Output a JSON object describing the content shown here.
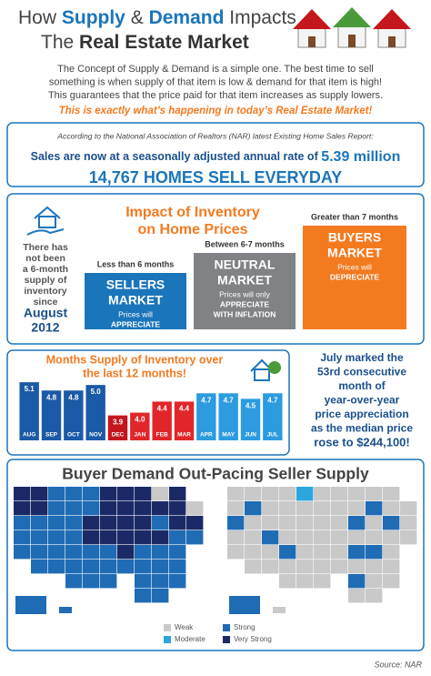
{
  "header": {
    "title_line1": [
      "How ",
      "Supply",
      " & ",
      "Demand",
      " Impacts"
    ],
    "title_line2": [
      "The ",
      "Real Estate Market"
    ],
    "intro": [
      "The Concept of Supply & Demand is a simple one. The best time to sell",
      "something is when supply of that item is low & demand for that item is high!",
      "This guarantees that the price paid for that item increases as supply lowers."
    ],
    "highlight": "This is exactly what’s happening in today’s Real Estate Market!"
  },
  "nar": {
    "source_line": "According to the National Association of Realtors (NAR) latest Existing Home Sales Report:",
    "sales_text": "Sales are now at a seasonally adjusted annual rate of ",
    "sales_value": "5.39 million",
    "homes": "14,767 HOMES SELL EVERYDAY"
  },
  "inventory": {
    "title": [
      "Impact of Inventory",
      "on Home Prices"
    ],
    "note": [
      "There has",
      "not been",
      "a 6-month",
      "supply of",
      "inventory",
      "since"
    ],
    "note_date": [
      "August",
      "2012"
    ],
    "markets": [
      {
        "range": "Less than 6 months",
        "name": [
          "SELLERS",
          "MARKET"
        ],
        "desc": [
          "Prices will",
          "APPRECIATE"
        ]
      },
      {
        "range": "Between 6-7 months",
        "name": [
          "NEUTRAL",
          "MARKET"
        ],
        "desc": [
          "Prices will only",
          "APPRECIATE",
          "WITH INFLATION"
        ]
      },
      {
        "range": "Greater than 7 months",
        "name": [
          "BUYERS",
          "MARKET"
        ],
        "desc": [
          "Prices will",
          "DEPRECIATE"
        ]
      }
    ]
  },
  "chart_data": {
    "type": "bar",
    "title": [
      "Months Supply of Inventory over",
      "the last 12 months!"
    ],
    "categories": [
      "AUG",
      "SEP",
      "OCT",
      "NOV",
      "DEC",
      "JAN",
      "FEB",
      "MAR",
      "APR",
      "MAY",
      "JUN",
      "JUL"
    ],
    "values": [
      5.1,
      4.8,
      4.8,
      5.0,
      3.9,
      4.0,
      4.4,
      4.4,
      4.7,
      4.7,
      4.5,
      4.7
    ],
    "value_labels": [
      "5.1",
      "4.8",
      "4.8",
      "5.0",
      "3.9",
      "4.0",
      "4.4",
      "4.4",
      "4.7",
      "4.7",
      "4.5",
      "4.7"
    ],
    "colors": [
      "#1b5aa6",
      "#1b5aa6",
      "#1b5aa6",
      "#1b5aa6",
      "#c4161c",
      "#e0262b",
      "#e0262b",
      "#e0262b",
      "#2c9be0",
      "#2c9be0",
      "#2c9be0",
      "#2c9be0"
    ],
    "ylim": [
      3,
      5.3
    ]
  },
  "appreciation": [
    "July marked the",
    "53rd consecutive",
    "month of",
    "year-over-year",
    "price appreciation",
    "as the median price",
    "rose to $244,100!"
  ],
  "maps": {
    "title": "Buyer Demand Out-Pacing Seller Supply",
    "legend": [
      {
        "label": "Weak",
        "color": "#c9c9c9"
      },
      {
        "label": "Moderate",
        "color": "#2ba6df"
      },
      {
        "label": "Strong",
        "color": "#1f6cb5"
      },
      {
        "label": "Very Strong",
        "color": "#1b2a66"
      }
    ]
  },
  "source": "Source: NAR"
}
